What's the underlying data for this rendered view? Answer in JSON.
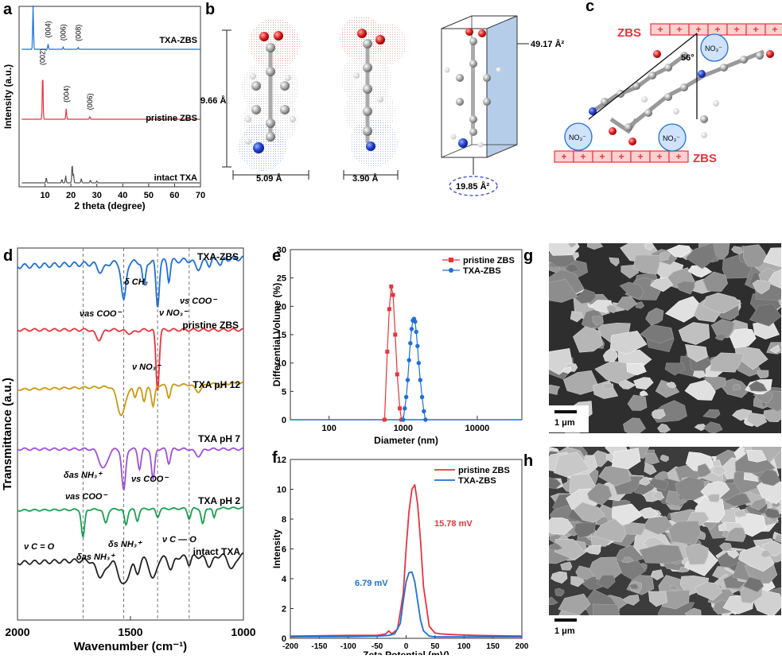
{
  "panels": {
    "a": {
      "letter": "a"
    },
    "b": {
      "letter": "b",
      "length_label": "9.66 Å",
      "width_label_1": "5.09 Å",
      "width_label_2": "3.90 Å",
      "area_top": "49.17 Å²",
      "area_bottom": "19.85 Å²"
    },
    "c": {
      "letter": "c",
      "zbs_top": "ZBS",
      "zbs_bottom": "ZBS",
      "angle": "56°",
      "ion": "NO₃⁻",
      "plus": "+"
    },
    "d": {
      "letter": "d"
    },
    "e": {
      "letter": "e"
    },
    "f": {
      "letter": "f",
      "annot_red": "15.78 mV",
      "annot_blue": "6.79 mV"
    },
    "g": {
      "letter": "g",
      "scale": "1 μm"
    },
    "h": {
      "letter": "h",
      "scale": "1 μm"
    }
  },
  "colors": {
    "blue": "#1f6fd6",
    "red": "#e8343c",
    "gold": "#c99a10",
    "purple": "#a050d8",
    "green": "#1aa050",
    "gray": "#555555",
    "black": "#222222"
  },
  "chart_data": [
    {
      "id": "a",
      "type": "line",
      "xlabel": "2 theta (degree)",
      "ylabel": "Intensity (a.u.)",
      "xlim": [
        0,
        70
      ],
      "xticks": [
        10,
        20,
        30,
        40,
        50,
        60,
        70
      ],
      "series": [
        {
          "name": "TXA-ZBS",
          "color": "blue",
          "peaks": [
            [
              5.4,
              1.0
            ],
            [
              11.2,
              0.12
            ],
            [
              17.0,
              0.05
            ],
            [
              22.8,
              0.04
            ]
          ],
          "peak_labels": [
            "(002)",
            "(004)",
            "(006)",
            "(008)"
          ]
        },
        {
          "name": "pristine ZBS",
          "color": "red",
          "peaks": [
            [
              9.1,
              1.0
            ],
            [
              18.2,
              0.22
            ],
            [
              27.3,
              0.06
            ]
          ],
          "peak_labels": [
            "(002)",
            "(004)",
            "(006)"
          ]
        },
        {
          "name": "intact TXA",
          "color": "gray",
          "peaks": [
            [
              10.5,
              0.15
            ],
            [
              16.5,
              0.1
            ],
            [
              18.0,
              0.2
            ],
            [
              20.5,
              0.55
            ],
            [
              21.0,
              0.25
            ],
            [
              24.0,
              0.12
            ],
            [
              27.5,
              0.08
            ],
            [
              30.0,
              0.05
            ]
          ]
        }
      ]
    },
    {
      "id": "d",
      "type": "line",
      "xlabel": "Wavenumber (cm⁻¹)",
      "ylabel": "Transmittance (a.u.)",
      "xlim": [
        2000,
        1000
      ],
      "xticks": [
        2000,
        1500,
        1000
      ],
      "dashed_lines": [
        1710,
        1530,
        1380,
        1240
      ],
      "series": [
        {
          "name": "TXA-ZBS",
          "color": "blue"
        },
        {
          "name": "pristine ZBS",
          "color": "red"
        },
        {
          "name": "TXA pH 12",
          "color": "gold"
        },
        {
          "name": "TXA pH 7",
          "color": "purple"
        },
        {
          "name": "TXA pH 2",
          "color": "green"
        },
        {
          "name": "intact TXA",
          "color": "black"
        }
      ],
      "annotations": {
        "blue_1": "νas COO⁻",
        "blue_2": "δ CH₂",
        "blue_3": "νs COO⁻",
        "blue_4": "ν NO₃⁻",
        "red_1": "ν NO₃⁻",
        "purple_1": "δas NH₃⁺",
        "purple_2": "νas COO⁻",
        "purple_3": "νs COO⁻",
        "green_1": "ν C = O",
        "green_2": "δas NH₃⁺",
        "green_3": "δs NH₃⁺",
        "green_4": "ν C — O"
      }
    },
    {
      "id": "e",
      "type": "line",
      "xlabel": "Diameter (nm)",
      "ylabel": "Differential Volume (%)",
      "xscale": "log",
      "xlim": [
        30,
        40000
      ],
      "xticks": [
        100,
        1000,
        10000
      ],
      "ylim": [
        0,
        30
      ],
      "yticks": [
        0,
        5,
        10,
        15,
        20,
        25,
        30
      ],
      "legend": "top-right",
      "series": [
        {
          "name": "pristine ZBS",
          "color": "red",
          "marker": "square",
          "x": [
            560,
            610,
            650,
            690,
            730,
            780,
            830,
            900,
            950
          ],
          "y": [
            0,
            12,
            19.5,
            23.5,
            22,
            15,
            8,
            2,
            0
          ]
        },
        {
          "name": "TXA-ZBS",
          "color": "blue",
          "marker": "circle",
          "x": [
            1000,
            1050,
            1100,
            1150,
            1200,
            1250,
            1300,
            1350,
            1400,
            1450,
            1500,
            1560,
            1620,
            1700,
            1800,
            1900,
            2000
          ],
          "y": [
            0,
            2,
            4,
            7,
            10.5,
            13.5,
            16,
            17.5,
            17.8,
            17.3,
            15.5,
            13,
            10,
            7,
            4,
            1.5,
            0
          ]
        }
      ]
    },
    {
      "id": "f",
      "type": "line",
      "xlabel": "Zeta Potential (mV)",
      "ylabel": "Intensity",
      "xlim": [
        -200,
        200
      ],
      "xticks": [
        -200,
        -150,
        -100,
        -50,
        0,
        50,
        100,
        150,
        200
      ],
      "ylim": [
        0,
        12
      ],
      "yticks": [
        0,
        2,
        4,
        6,
        8,
        10,
        12
      ],
      "legend": "top-right",
      "series": [
        {
          "name": "pristine ZBS",
          "color": "red",
          "x": [
            -200,
            -100,
            -50,
            -35,
            -30,
            -25,
            -15,
            -5,
            0,
            5,
            10,
            15,
            20,
            25,
            30,
            40,
            50,
            60,
            80,
            120,
            200
          ],
          "y": [
            0.15,
            0.2,
            0.2,
            0.3,
            0.5,
            0.3,
            0.6,
            3.0,
            6.0,
            8.5,
            10.0,
            10.3,
            9.0,
            6.5,
            3.5,
            0.8,
            0.35,
            0.3,
            0.25,
            0.2,
            0.15
          ]
        },
        {
          "name": "TXA-ZBS",
          "color": "blue",
          "x": [
            -200,
            -100,
            -50,
            -30,
            -20,
            -10,
            -5,
            0,
            5,
            10,
            15,
            20,
            25,
            30,
            40,
            50,
            80,
            200
          ],
          "y": [
            0.1,
            0.12,
            0.15,
            0.2,
            0.3,
            1.0,
            2.5,
            3.8,
            4.4,
            4.45,
            3.8,
            2.5,
            1.2,
            0.5,
            0.15,
            0.1,
            0.1,
            0.1
          ]
        }
      ]
    }
  ]
}
